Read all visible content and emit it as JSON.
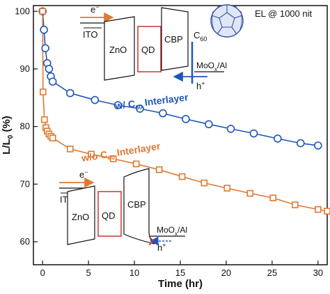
{
  "annotation": "EL @ 1000 nit",
  "colors": {
    "blue": "#1f55b8",
    "orange": "#e07830",
    "qd_red": "#cc3333",
    "axis": "#111111"
  },
  "chart_data": {
    "type": "line",
    "xlim": [
      -1,
      31
    ],
    "ylim": [
      56,
      101
    ],
    "xlabel": {
      "main": "Time (hr)"
    },
    "ylabel": {
      "main": "L/L",
      "sub": "0",
      "tail": " (%)"
    },
    "xticks": [
      0,
      5,
      10,
      15,
      20,
      25,
      30
    ],
    "xtick_labels": [
      "0",
      "5",
      "10",
      "15",
      "20",
      "25",
      "30"
    ],
    "yticks": [
      60,
      70,
      80,
      90,
      100
    ],
    "ytick_labels": [
      "60",
      "70",
      "80",
      "90",
      "100"
    ],
    "series": [
      {
        "label_prefix": "w/ C",
        "label_sub": "60",
        "label_suffix": " Interlayer",
        "color": "#1f55b8",
        "marker": "circle",
        "points": [
          [
            0,
            100
          ],
          [
            0.15,
            96.8
          ],
          [
            0.3,
            93.6
          ],
          [
            0.5,
            91.0
          ],
          [
            0.7,
            90.0
          ],
          [
            0.9,
            88.7
          ],
          [
            1.1,
            87.8
          ],
          [
            3,
            85.8
          ],
          [
            5.7,
            84.6
          ],
          [
            8.2,
            83.7
          ],
          [
            10.6,
            83.1
          ],
          [
            13.1,
            82.3
          ],
          [
            15.6,
            81.3
          ],
          [
            18.1,
            80.4
          ],
          [
            20.5,
            79.6
          ],
          [
            23,
            78.8
          ],
          [
            25.6,
            77.9
          ],
          [
            28.1,
            77.1
          ],
          [
            30,
            76.7
          ]
        ]
      },
      {
        "label_prefix": "w/o C",
        "label_sub": "60",
        "label_suffix": " Interlayer",
        "color": "#e07830",
        "marker": "square",
        "points": [
          [
            0,
            100
          ],
          [
            0.05,
            86
          ],
          [
            0.2,
            81.2
          ],
          [
            0.35,
            79.8
          ],
          [
            0.5,
            79.2
          ],
          [
            0.7,
            78.7
          ],
          [
            0.9,
            78.3
          ],
          [
            1.1,
            78.0
          ],
          [
            3,
            76.1
          ],
          [
            5.3,
            75.2
          ],
          [
            7.7,
            74.4
          ],
          [
            10.2,
            73.5
          ],
          [
            12.7,
            72.5
          ],
          [
            15.2,
            71.3
          ],
          [
            17.6,
            70.2
          ],
          [
            20.1,
            69.3
          ],
          [
            22.6,
            68.4
          ],
          [
            25.1,
            67.6
          ],
          [
            27.5,
            66.4
          ],
          [
            30,
            65.6
          ],
          [
            31,
            65.3
          ]
        ]
      }
    ]
  },
  "inset_top": {
    "electrons": "e",
    "electron_sup": "−",
    "holes": "h",
    "hole_sup": "+",
    "layers": {
      "ito": "ITO",
      "zno": "ZnO",
      "qd": "QD",
      "cbp": "CBP",
      "c60": "C",
      "c60_sub": "60",
      "anode": "MoO",
      "anode_sub": "x",
      "anode_tail": "/Al"
    }
  },
  "inset_bottom": {
    "electrons": "e",
    "electron_sup": "−",
    "holes": "h",
    "hole_sup": "+",
    "layers": {
      "ito": "ITO",
      "zno": "ZnO",
      "qd": "QD",
      "cbp": "CBP",
      "anode": "MoO",
      "anode_sub": "x",
      "anode_tail": "/Al"
    }
  }
}
